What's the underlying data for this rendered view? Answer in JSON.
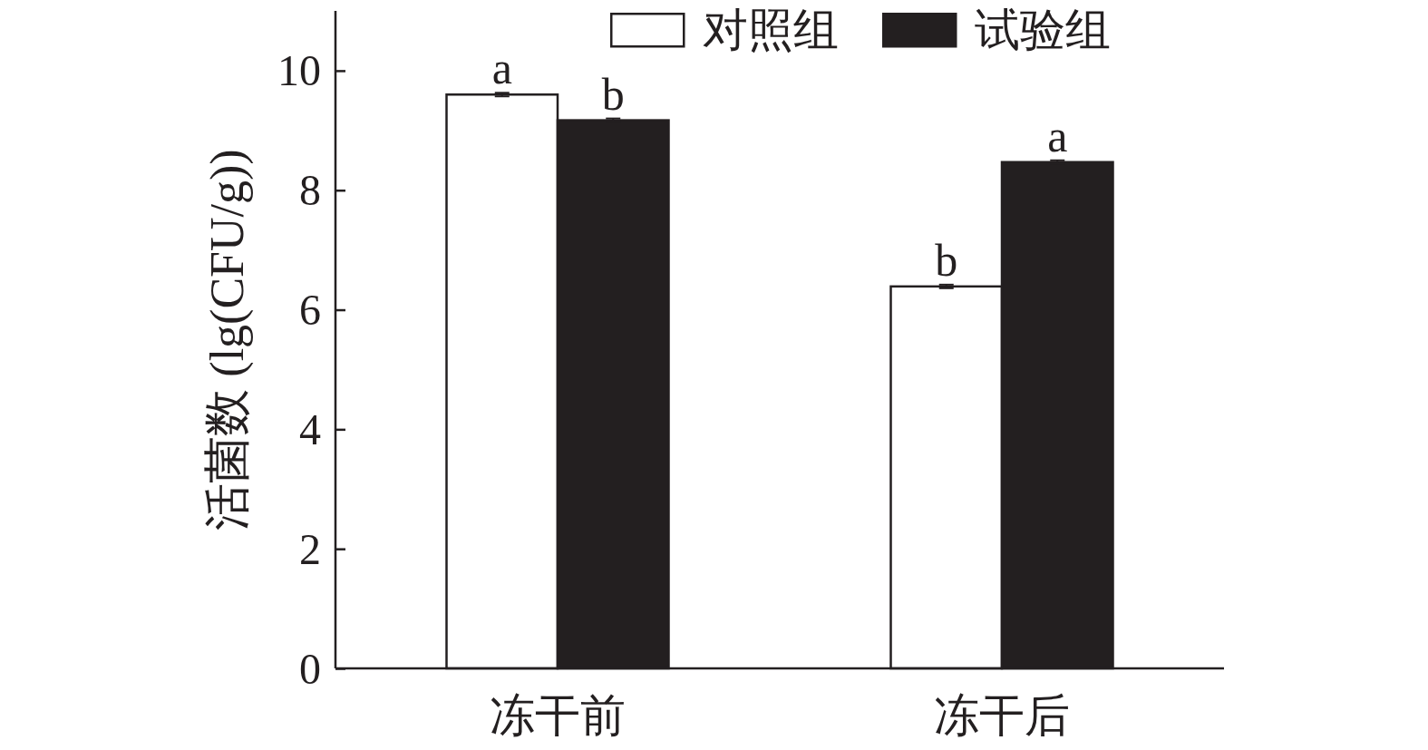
{
  "chart_data": {
    "type": "bar",
    "ylabel": "活菌数 (lg(CFU/g))",
    "categories": [
      "冻干前",
      "冻干后"
    ],
    "series": [
      {
        "name": "对照组",
        "color": "#ffffff",
        "values": [
          9.6,
          6.39
        ],
        "errors": [
          0.03,
          0.03
        ]
      },
      {
        "name": "试验组",
        "color": "#231f20",
        "values": [
          9.17,
          8.47
        ],
        "errors": [
          0.03,
          0.03
        ]
      }
    ],
    "ylim": [
      0,
      11
    ],
    "yticks": [
      0,
      2,
      4,
      6,
      8,
      10
    ],
    "legend": "top right",
    "annotations": [
      {
        "text": "a",
        "x": "冻干前",
        "y": 9.6
      },
      {
        "text": "b",
        "x": "冻干前",
        "y": 9.17
      },
      {
        "text": "b",
        "x": "冻干后",
        "y": 6.39
      },
      {
        "text": "a",
        "x": "冻干后",
        "y": 8.47
      }
    ]
  }
}
